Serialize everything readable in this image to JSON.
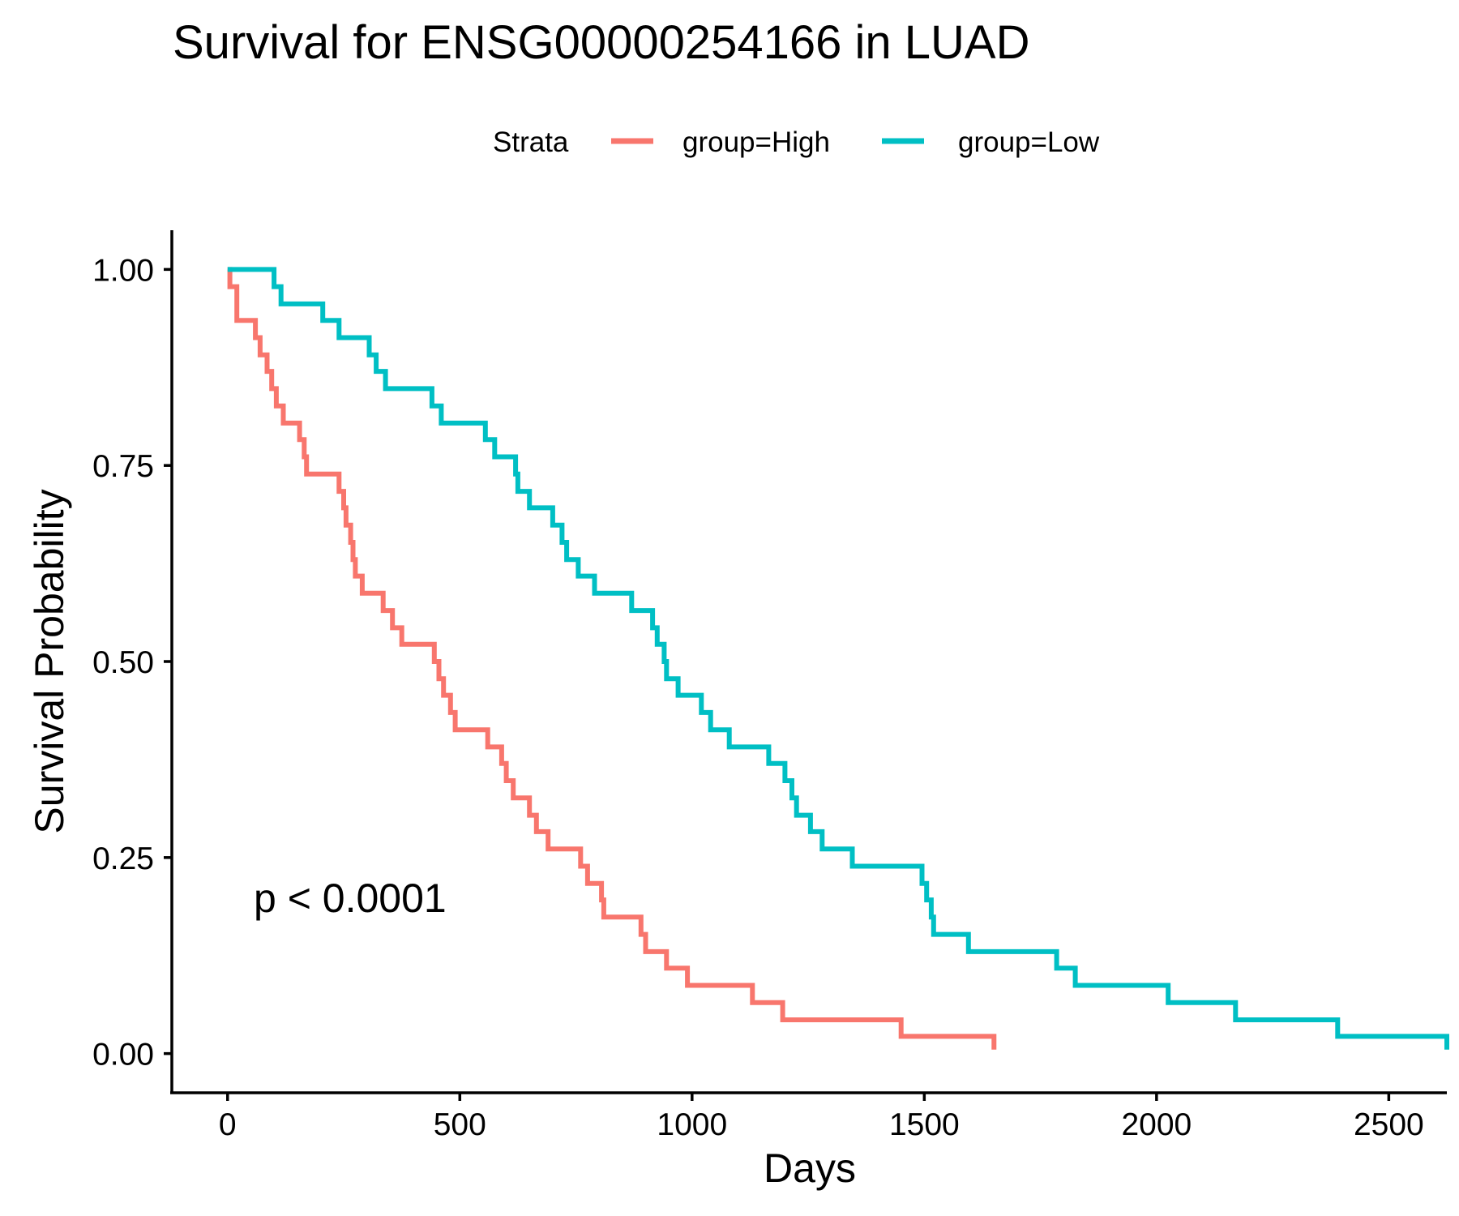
{
  "chart_data": {
    "type": "line",
    "subtype": "kaplan-meier step",
    "title": "Survival for ENSG00000254166 in LUAD",
    "xlabel": "Days",
    "ylabel": "Survival Probability",
    "xlim": [
      -120,
      2625
    ],
    "ylim": [
      -0.05,
      1.05
    ],
    "x_ticks": [
      0,
      500,
      1000,
      1500,
      2000,
      2500
    ],
    "x_tick_labels": [
      "0",
      "500",
      "1000",
      "1500",
      "2000",
      "2500"
    ],
    "y_ticks": [
      0,
      0.25,
      0.5,
      0.75,
      1.0
    ],
    "y_tick_labels": [
      "0.00",
      "0.25",
      "0.50",
      "0.75",
      "1.00"
    ],
    "grid": false,
    "legend": {
      "position": "top",
      "title": "Strata",
      "entries": [
        "group=High",
        "group=Low"
      ]
    },
    "annotation": "p < 0.0001",
    "series": [
      {
        "name": "group=High",
        "color": "#F8766D",
        "steps": [
          [
            0,
            1.0
          ],
          [
            5,
            0.978
          ],
          [
            20,
            0.935
          ],
          [
            60,
            0.913
          ],
          [
            70,
            0.891
          ],
          [
            85,
            0.87
          ],
          [
            95,
            0.848
          ],
          [
            105,
            0.826
          ],
          [
            120,
            0.804
          ],
          [
            155,
            0.783
          ],
          [
            165,
            0.761
          ],
          [
            170,
            0.739
          ],
          [
            240,
            0.717
          ],
          [
            250,
            0.696
          ],
          [
            255,
            0.674
          ],
          [
            265,
            0.652
          ],
          [
            270,
            0.63
          ],
          [
            275,
            0.609
          ],
          [
            290,
            0.587
          ],
          [
            335,
            0.565
          ],
          [
            355,
            0.543
          ],
          [
            375,
            0.522
          ],
          [
            445,
            0.5
          ],
          [
            455,
            0.478
          ],
          [
            465,
            0.457
          ],
          [
            480,
            0.435
          ],
          [
            490,
            0.413
          ],
          [
            560,
            0.391
          ],
          [
            590,
            0.37
          ],
          [
            600,
            0.348
          ],
          [
            615,
            0.326
          ],
          [
            650,
            0.304
          ],
          [
            665,
            0.283
          ],
          [
            690,
            0.261
          ],
          [
            760,
            0.239
          ],
          [
            775,
            0.217
          ],
          [
            805,
            0.196
          ],
          [
            810,
            0.174
          ],
          [
            890,
            0.152
          ],
          [
            900,
            0.13
          ],
          [
            945,
            0.109
          ],
          [
            990,
            0.087
          ],
          [
            1130,
            0.065
          ],
          [
            1195,
            0.043
          ],
          [
            1450,
            0.022
          ],
          [
            1650,
            0.005
          ]
        ]
      },
      {
        "name": "group=Low",
        "color": "#00BFC4",
        "steps": [
          [
            0,
            1.0
          ],
          [
            100,
            0.978
          ],
          [
            115,
            0.956
          ],
          [
            205,
            0.935
          ],
          [
            240,
            0.913
          ],
          [
            305,
            0.891
          ],
          [
            320,
            0.87
          ],
          [
            340,
            0.848
          ],
          [
            440,
            0.826
          ],
          [
            460,
            0.804
          ],
          [
            555,
            0.783
          ],
          [
            575,
            0.761
          ],
          [
            620,
            0.739
          ],
          [
            625,
            0.717
          ],
          [
            650,
            0.696
          ],
          [
            700,
            0.674
          ],
          [
            720,
            0.652
          ],
          [
            730,
            0.63
          ],
          [
            755,
            0.609
          ],
          [
            790,
            0.587
          ],
          [
            870,
            0.565
          ],
          [
            915,
            0.543
          ],
          [
            925,
            0.522
          ],
          [
            940,
            0.5
          ],
          [
            945,
            0.478
          ],
          [
            970,
            0.457
          ],
          [
            1020,
            0.435
          ],
          [
            1040,
            0.413
          ],
          [
            1080,
            0.391
          ],
          [
            1165,
            0.37
          ],
          [
            1200,
            0.348
          ],
          [
            1215,
            0.326
          ],
          [
            1225,
            0.304
          ],
          [
            1255,
            0.283
          ],
          [
            1280,
            0.261
          ],
          [
            1345,
            0.239
          ],
          [
            1495,
            0.217
          ],
          [
            1505,
            0.196
          ],
          [
            1515,
            0.174
          ],
          [
            1520,
            0.152
          ],
          [
            1595,
            0.13
          ],
          [
            1785,
            0.109
          ],
          [
            1825,
            0.087
          ],
          [
            2025,
            0.065
          ],
          [
            2170,
            0.043
          ],
          [
            2390,
            0.022
          ],
          [
            2625,
            0.005
          ]
        ]
      }
    ]
  }
}
